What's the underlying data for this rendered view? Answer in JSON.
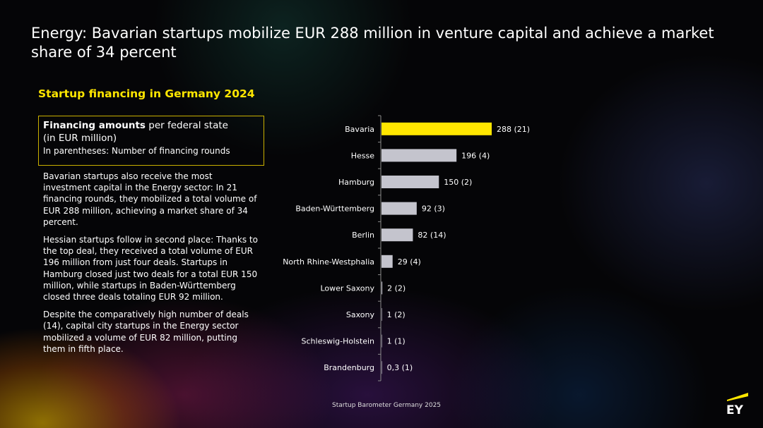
{
  "title": "Energy: Bavarian startups mobilize EUR 288 million in venture capital and achieve a market share of 34 percent",
  "subtitle": "Startup financing in Germany 2024",
  "legend_box": {
    "bold": "Financing amounts",
    "rest": " per federal state",
    "line2": "(in EUR million)",
    "line3": "In parentheses: Number of financing rounds"
  },
  "paragraphs": [
    "Bavarian startups also receive the most investment capital in the Energy sector: In 21 financing rounds, they mobilized a total volume of EUR 288 million, achieving a market share of 34 percent.",
    "Hessian startups follow in second place: Thanks to the top deal, they received a total volume of EUR 196 million from just four deals. Startups in Hamburg closed just two deals for a total EUR 150 million, while startups in Baden-Württemberg closed three deals totaling EUR 92 million.",
    "Despite the comparatively high number of deals (14), capital city startups in the Energy sector mobilized a volume of EUR 82 million, putting them in fifth place."
  ],
  "footer": "Startup Barometer Germany 2025",
  "logo_text": "EY",
  "colors": {
    "highlight": "#ffe600",
    "bar": "#c4c4cd",
    "axis": "#8a8a8a"
  },
  "chart_data": {
    "type": "bar",
    "orientation": "horizontal",
    "categories": [
      "Bavaria",
      "Hesse",
      "Hamburg",
      "Baden-Württemberg",
      "Berlin",
      "North Rhine-Westphalia",
      "Lower Saxony",
      "Saxony",
      "Schleswig-Holstein",
      "Brandenburg"
    ],
    "values": [
      288,
      196,
      150,
      92,
      82,
      29,
      2,
      1,
      1,
      0.3
    ],
    "labels": [
      "288 (21)",
      "196 (4)",
      "150 (2)",
      "92 (3)",
      "82 (14)",
      "29 (4)",
      "2 (2)",
      "1 (2)",
      "1 (1)",
      "0,3 (1)"
    ],
    "rounds": [
      21,
      4,
      2,
      3,
      14,
      4,
      2,
      2,
      1,
      1
    ],
    "highlight_index": 0,
    "title": "Startup financing in Germany 2024",
    "xlabel": "EUR million",
    "ylabel": "",
    "xlim": [
      0,
      288
    ]
  }
}
